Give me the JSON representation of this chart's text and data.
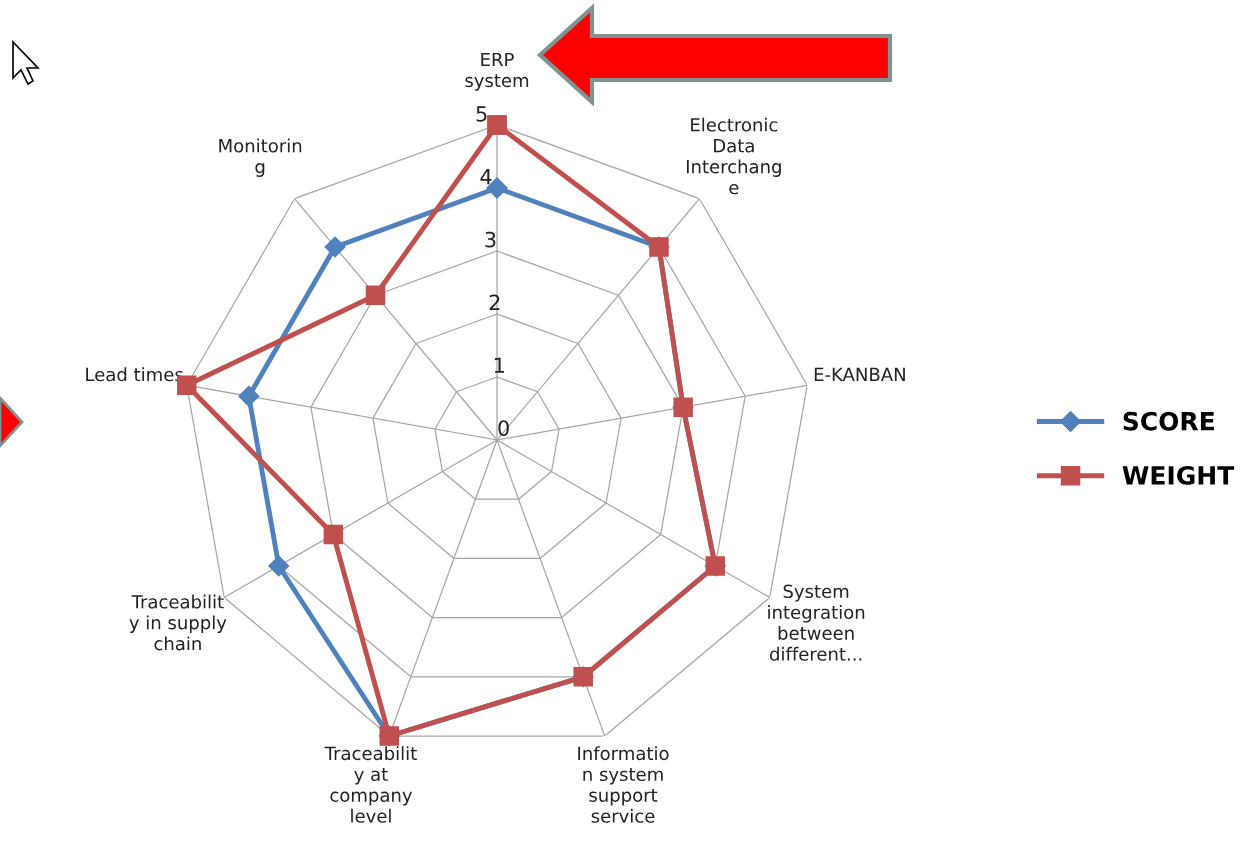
{
  "chart_data": {
    "type": "radar",
    "categories": [
      "ERP\nsystem",
      "Electronic\nData\nInterchang\ne",
      "E-KANBAN",
      "System\nintegration\nbetween\ndifferent...",
      "Informatio\nn system\nsupport\nservice",
      "Traceabilit\ny at\ncompany\nlevel",
      "Traceabilit\ny in supply\nchain",
      "Lead times",
      "Monitorin\ng"
    ],
    "series": [
      {
        "name": "SCORE",
        "color": "#4f81bd",
        "marker": "diamond",
        "values": [
          4,
          4,
          3,
          4,
          4,
          5,
          4,
          4,
          4
        ]
      },
      {
        "name": "WEIGHT",
        "color": "#c0504d",
        "marker": "square",
        "values": [
          5,
          4,
          3,
          4,
          4,
          5,
          3,
          5,
          3
        ]
      }
    ],
    "ylim": [
      0,
      5
    ],
    "yticks": [
      0,
      1,
      2,
      3,
      4,
      5
    ],
    "grid": true,
    "legend": "right"
  }
}
